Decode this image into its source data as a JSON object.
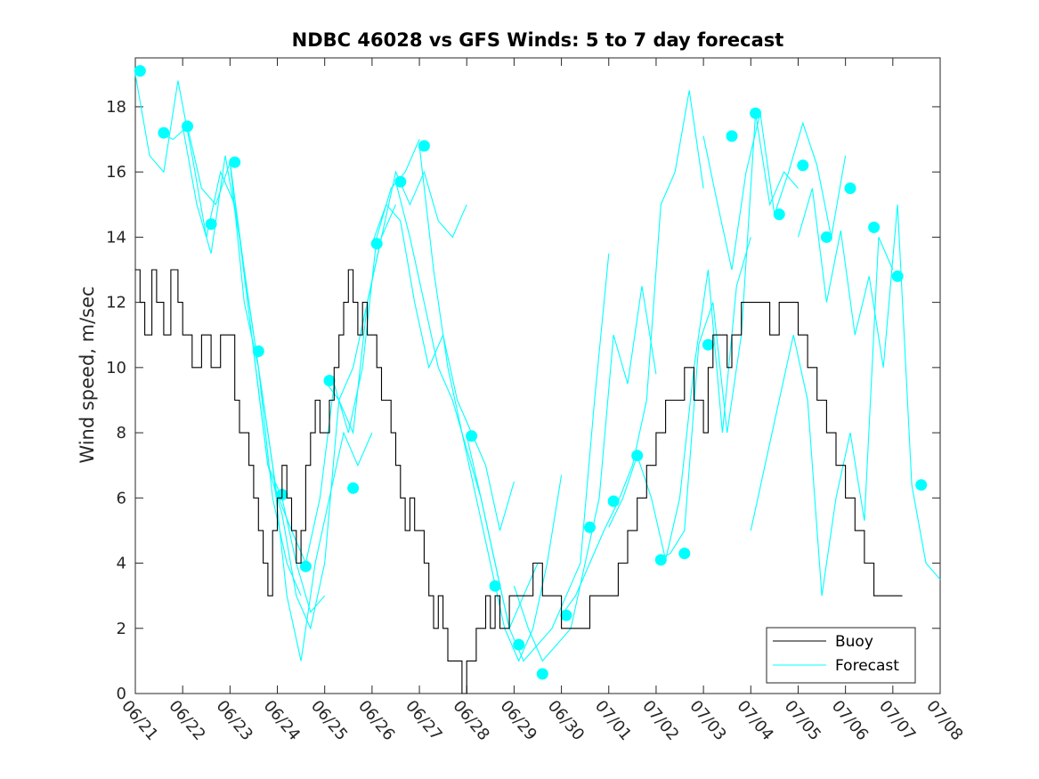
{
  "chart_data": {
    "type": "line",
    "title": "NDBC 46028 vs GFS Winds: 5 to 7 day forecast",
    "xlabel": "",
    "ylabel": "Wind speed, m/sec",
    "xlim": [
      0,
      17
    ],
    "ylim": [
      0,
      19.5
    ],
    "x_ticks": [
      {
        "x": 0,
        "label": "06/21"
      },
      {
        "x": 1,
        "label": "06/22"
      },
      {
        "x": 2,
        "label": "06/23"
      },
      {
        "x": 3,
        "label": "06/24"
      },
      {
        "x": 4,
        "label": "06/25"
      },
      {
        "x": 5,
        "label": "06/26"
      },
      {
        "x": 6,
        "label": "06/27"
      },
      {
        "x": 7,
        "label": "06/28"
      },
      {
        "x": 8,
        "label": "06/29"
      },
      {
        "x": 9,
        "label": "06/30"
      },
      {
        "x": 10,
        "label": "07/01"
      },
      {
        "x": 11,
        "label": "07/02"
      },
      {
        "x": 12,
        "label": "07/03"
      },
      {
        "x": 13,
        "label": "07/04"
      },
      {
        "x": 14,
        "label": "07/05"
      },
      {
        "x": 15,
        "label": "07/06"
      },
      {
        "x": 16,
        "label": "07/07"
      },
      {
        "x": 17,
        "label": "07/08"
      }
    ],
    "y_ticks": [
      0,
      2,
      4,
      6,
      8,
      10,
      12,
      14,
      16,
      18
    ],
    "grid": false,
    "legend_position": "bottom-right",
    "series": [
      {
        "name": "Buoy",
        "color": "#000000",
        "style": "step",
        "x": [
          0,
          0.1,
          0.2,
          0.35,
          0.45,
          0.6,
          0.75,
          0.9,
          1.0,
          1.1,
          1.2,
          1.4,
          1.6,
          1.8,
          2.0,
          2.1,
          2.2,
          2.4,
          2.5,
          2.6,
          2.7,
          2.8,
          2.9,
          3.0,
          3.1,
          3.2,
          3.3,
          3.4,
          3.5,
          3.6,
          3.7,
          3.8,
          3.9,
          4.0,
          4.1,
          4.2,
          4.3,
          4.4,
          4.5,
          4.6,
          4.7,
          4.8,
          4.9,
          5.0,
          5.1,
          5.2,
          5.3,
          5.4,
          5.5,
          5.6,
          5.7,
          5.8,
          5.9,
          6.0,
          6.1,
          6.2,
          6.3,
          6.4,
          6.5,
          6.6,
          6.7,
          6.8,
          6.9,
          7.0,
          7.1,
          7.2,
          7.3,
          7.4,
          7.5,
          7.6,
          7.7,
          7.8,
          7.9,
          8.0,
          8.2,
          8.4,
          8.6,
          8.8,
          9.0,
          9.2,
          9.4,
          9.6,
          9.8,
          10.0,
          10.2,
          10.4,
          10.6,
          10.8,
          11.0,
          11.2,
          11.4,
          11.6,
          11.8,
          12.0,
          12.1,
          12.2,
          12.3,
          12.4,
          12.5,
          12.6,
          12.7,
          12.8,
          12.9,
          13.0,
          13.2,
          13.4,
          13.6,
          13.8,
          14.0,
          14.2,
          14.4,
          14.6,
          14.8,
          15.0,
          15.2,
          15.4,
          15.6,
          15.8,
          16.0,
          16.1,
          16.2
        ],
        "values": [
          13,
          12,
          11,
          13,
          12,
          11,
          13,
          12,
          11,
          11,
          10,
          11,
          10,
          11,
          11,
          9,
          8,
          7,
          6,
          5,
          4,
          3,
          5,
          6,
          7,
          6,
          5,
          4,
          5,
          7,
          8,
          9,
          8,
          8,
          9,
          10,
          11,
          12,
          13,
          12,
          11,
          12,
          11,
          11,
          10,
          9,
          9,
          8,
          7,
          6,
          5,
          6,
          5,
          5,
          4,
          3,
          2,
          3,
          2,
          1,
          1,
          1,
          0,
          1,
          1,
          2,
          2,
          3,
          2,
          3,
          2,
          2,
          3,
          3,
          3,
          4,
          3,
          3,
          2,
          2,
          2,
          3,
          3,
          3,
          4,
          5,
          6,
          7,
          8,
          9,
          9,
          10,
          9,
          8,
          10,
          11,
          11,
          11,
          10,
          11,
          11,
          12,
          12,
          12,
          12,
          11,
          12,
          12,
          11,
          10,
          9,
          8,
          7,
          6,
          5,
          4,
          3,
          3,
          3,
          3,
          3
        ]
      },
      {
        "name": "Forecast",
        "color": "#00ffff",
        "style": "line",
        "runs": [
          {
            "x": [
              0,
              0.3,
              0.6,
              0.9,
              1.2,
              1.5,
              1.8,
              2.1,
              2.4,
              2.7,
              3.0
            ],
            "values": [
              19,
              16.5,
              16,
              18.8,
              16.5,
              14,
              16,
              15,
              12,
              9,
              6
            ]
          },
          {
            "x": [
              0.5,
              0.8,
              1.1,
              1.4,
              1.7,
              2.0,
              2.3,
              2.6,
              2.9,
              3.2,
              3.5
            ],
            "values": [
              17.2,
              17,
              17.4,
              15.5,
              15,
              16.3,
              13,
              10,
              6,
              4,
              3
            ]
          },
          {
            "x": [
              1.0,
              1.3,
              1.6,
              1.9,
              2.2,
              2.5,
              2.8,
              3.1,
              3.4,
              3.7,
              4.0
            ],
            "values": [
              17.4,
              15,
              13.5,
              16.5,
              14,
              10.5,
              7,
              6,
              4,
              2.5,
              3
            ]
          },
          {
            "x": [
              2.0,
              2.3,
              2.6,
              2.9,
              3.2,
              3.5,
              3.8,
              4.1,
              4.4,
              4.7,
              5.0
            ],
            "values": [
              16.3,
              12,
              10,
              7,
              3,
              1,
              4,
              6,
              8,
              7,
              8
            ]
          },
          {
            "x": [
              2.5,
              2.8,
              3.1,
              3.4,
              3.7,
              4.0,
              4.3,
              4.6,
              4.9,
              5.2,
              5.5
            ],
            "values": [
              10.5,
              7,
              5.5,
              3,
              2,
              4,
              9,
              10,
              12,
              14,
              15
            ]
          },
          {
            "x": [
              3.0,
              3.3,
              3.6,
              3.9,
              4.2,
              4.5,
              4.8,
              5.1,
              5.4,
              5.7,
              6.0
            ],
            "values": [
              6.1,
              5,
              4,
              6,
              9.5,
              8,
              10,
              14,
              15.5,
              16,
              17
            ]
          },
          {
            "x": [
              4.0,
              4.3,
              4.6,
              4.9,
              5.2,
              5.5,
              5.8,
              6.1,
              6.4,
              6.7,
              7.0
            ],
            "values": [
              9.6,
              9,
              8,
              12,
              14,
              16,
              15,
              16,
              14.5,
              14,
              15
            ]
          },
          {
            "x": [
              5.0,
              5.3,
              5.6,
              5.9,
              6.2,
              6.5,
              6.8,
              7.1,
              7.4,
              7.7,
              8.0
            ],
            "values": [
              13.8,
              15,
              14.5,
              12,
              10,
              11,
              9,
              8,
              7,
              5,
              6.5
            ]
          },
          {
            "x": [
              5.5,
              5.8,
              6.1,
              6.4,
              6.7,
              7.0,
              7.3,
              7.6,
              7.9,
              8.2,
              8.5
            ],
            "values": [
              15.7,
              14,
              12,
              10,
              9,
              7.5,
              6,
              4,
              2,
              3,
              4
            ]
          },
          {
            "x": [
              6.0,
              6.3,
              6.6,
              6.9,
              7.2,
              7.5,
              7.8,
              8.1,
              8.4,
              8.7,
              9.0
            ],
            "values": [
              16.8,
              13,
              10,
              8,
              6,
              4,
              2,
              1,
              2,
              4,
              6.7
            ]
          },
          {
            "x": [
              7.0,
              7.3,
              7.6,
              7.9,
              8.2,
              8.5,
              8.8,
              9.1,
              9.4,
              9.7,
              10.0
            ],
            "values": [
              7.9,
              6,
              4,
              2,
              1,
              1.5,
              2,
              3,
              4,
              9,
              13.5
            ]
          },
          {
            "x": [
              8.0,
              8.3,
              8.6,
              8.9,
              9.2,
              9.5,
              9.8,
              10.1,
              10.4,
              10.7,
              11.0
            ],
            "values": [
              3.3,
              2,
              1,
              1.5,
              2,
              4,
              6,
              11,
              9.5,
              12.5,
              9.8
            ]
          },
          {
            "x": [
              9.0,
              9.3,
              9.6,
              9.9,
              10.2,
              10.5,
              10.8,
              11.1,
              11.4,
              11.7,
              12.0
            ],
            "values": [
              2.4,
              3,
              4,
              5,
              5.9,
              7,
              9,
              15,
              16,
              18.5,
              15.5
            ]
          },
          {
            "x": [
              10.0,
              10.3,
              10.6,
              10.9,
              11.2,
              11.5,
              11.8,
              12.1,
              12.4,
              12.7,
              13.0
            ],
            "values": [
              5.1,
              6,
              7.3,
              6,
              4.1,
              6,
              10,
              13,
              8,
              12.5,
              14
            ]
          },
          {
            "x": [
              11.0,
              11.3,
              11.6,
              11.9,
              12.2,
              12.5,
              12.8,
              13.1,
              13.4,
              13.7,
              14.0
            ],
            "values": [
              4.1,
              4.3,
              5,
              10.7,
              12,
              8,
              11,
              17.8,
              15,
              16,
              15.5
            ]
          },
          {
            "x": [
              12.0,
              12.3,
              12.6,
              12.9,
              13.2,
              13.5,
              13.8,
              14.1,
              14.4,
              14.7,
              15.0
            ],
            "values": [
              17.1,
              15,
              13,
              16,
              17.8,
              14.7,
              16,
              17.5,
              16.2,
              14,
              16.5
            ]
          },
          {
            "x": [
              13.0,
              13.3,
              13.6,
              13.9,
              14.2,
              14.5,
              14.8,
              15.1,
              15.4,
              15.7,
              16.0
            ],
            "values": [
              5,
              7,
              9,
              11,
              9,
              3,
              6,
              8,
              5.3,
              14,
              13
            ]
          },
          {
            "x": [
              14.0,
              14.3,
              14.6,
              14.9,
              15.2,
              15.5,
              15.8,
              16.1,
              16.4,
              16.7,
              17.0
            ],
            "values": [
              14,
              15.5,
              12,
              14.2,
              11,
              12.8,
              10,
              15,
              6.4,
              4,
              3.5
            ]
          }
        ],
        "markers": {
          "x": [
            0.1,
            0.6,
            1.1,
            1.6,
            2.1,
            2.6,
            3.1,
            3.6,
            4.1,
            4.6,
            5.1,
            5.6,
            6.1,
            7.1,
            7.6,
            8.1,
            8.6,
            9.1,
            9.6,
            10.1,
            10.6,
            11.1,
            11.6,
            12.1,
            12.6,
            13.1,
            13.6,
            14.1,
            14.6,
            15.1,
            15.6,
            16.1,
            16.6
          ],
          "values": [
            19.1,
            17.2,
            17.4,
            14.4,
            16.3,
            10.5,
            6.1,
            3.9,
            9.6,
            6.3,
            13.8,
            15.7,
            16.8,
            7.9,
            3.3,
            1.5,
            0.6,
            2.4,
            5.1,
            5.9,
            7.3,
            4.1,
            4.3,
            10.7,
            17.1,
            17.8,
            14.7,
            16.2,
            14.0,
            15.5,
            14.3,
            12.8,
            6.4
          ]
        }
      }
    ],
    "legend": [
      {
        "label": "Buoy",
        "color": "#000000"
      },
      {
        "label": "Forecast",
        "color": "#00ffff"
      }
    ]
  }
}
